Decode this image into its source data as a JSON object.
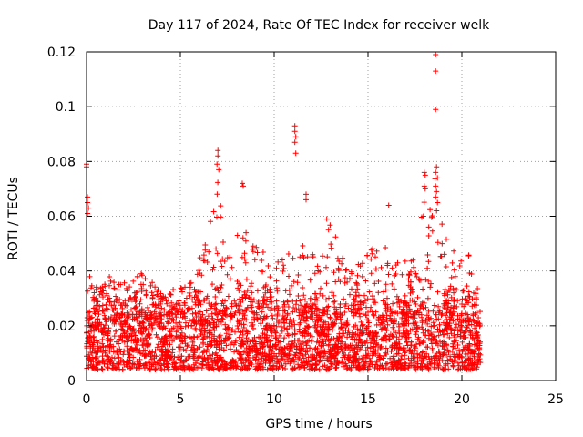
{
  "chart_data": {
    "type": "scatter",
    "title": "Day 117 of 2024, Rate Of TEC Index for receiver welk",
    "xlabel": "GPS time / hours",
    "ylabel": "ROTI / TECUs",
    "xlim": [
      0,
      25
    ],
    "ylim": [
      0,
      0.12
    ],
    "x_ticks": [
      0,
      5,
      10,
      15,
      20,
      25
    ],
    "x_tick_labels": [
      "0",
      "5",
      "10",
      "15",
      "20",
      "25"
    ],
    "y_ticks": [
      0,
      0.02,
      0.04,
      0.06,
      0.08,
      0.1,
      0.12
    ],
    "y_tick_labels": [
      "0",
      "0.02",
      "0.04",
      "0.06",
      "0.08",
      "0.1",
      "0.12"
    ],
    "grid": true,
    "marker": "plus",
    "color": "#ff0000",
    "data_range_hours": [
      0,
      21
    ],
    "baseline_band": [
      0.004,
      0.03
    ],
    "envelope": [
      [
        0.0,
        0.045
      ],
      [
        0.5,
        0.03
      ],
      [
        1.0,
        0.04
      ],
      [
        2.0,
        0.035
      ],
      [
        2.8,
        0.04
      ],
      [
        3.5,
        0.037
      ],
      [
        4.5,
        0.03
      ],
      [
        5.5,
        0.035
      ],
      [
        6.3,
        0.05
      ],
      [
        6.8,
        0.065
      ],
      [
        7.0,
        0.074
      ],
      [
        7.5,
        0.045
      ],
      [
        8.2,
        0.06
      ],
      [
        8.6,
        0.052
      ],
      [
        9.2,
        0.05
      ],
      [
        10.0,
        0.045
      ],
      [
        10.6,
        0.05
      ],
      [
        11.2,
        0.045
      ],
      [
        11.7,
        0.065
      ],
      [
        12.3,
        0.045
      ],
      [
        13.0,
        0.058
      ],
      [
        14.0,
        0.042
      ],
      [
        15.0,
        0.046
      ],
      [
        16.0,
        0.058
      ],
      [
        16.5,
        0.043
      ],
      [
        17.5,
        0.045
      ],
      [
        18.1,
        0.07
      ],
      [
        18.6,
        0.075
      ],
      [
        19.0,
        0.055
      ],
      [
        19.6,
        0.052
      ],
      [
        20.2,
        0.05
      ],
      [
        21.0,
        0.03
      ]
    ],
    "outliers": [
      {
        "x": 0.0,
        "y": 0.079
      },
      {
        "x": 0.0,
        "y": 0.078
      },
      {
        "x": 0.05,
        "y": 0.067
      },
      {
        "x": 0.05,
        "y": 0.065
      },
      {
        "x": 0.1,
        "y": 0.063
      },
      {
        "x": 0.05,
        "y": 0.061
      },
      {
        "x": 7.0,
        "y": 0.084
      },
      {
        "x": 7.0,
        "y": 0.082
      },
      {
        "x": 6.95,
        "y": 0.079
      },
      {
        "x": 7.05,
        "y": 0.077
      },
      {
        "x": 8.3,
        "y": 0.072
      },
      {
        "x": 8.35,
        "y": 0.071
      },
      {
        "x": 11.1,
        "y": 0.093
      },
      {
        "x": 11.1,
        "y": 0.091
      },
      {
        "x": 11.15,
        "y": 0.089
      },
      {
        "x": 11.1,
        "y": 0.087
      },
      {
        "x": 11.15,
        "y": 0.083
      },
      {
        "x": 11.7,
        "y": 0.068
      },
      {
        "x": 11.7,
        "y": 0.066
      },
      {
        "x": 12.8,
        "y": 0.059
      },
      {
        "x": 16.1,
        "y": 0.064
      },
      {
        "x": 18.0,
        "y": 0.076
      },
      {
        "x": 18.05,
        "y": 0.075
      },
      {
        "x": 18.0,
        "y": 0.071
      },
      {
        "x": 18.05,
        "y": 0.07
      },
      {
        "x": 17.95,
        "y": 0.06
      },
      {
        "x": 18.6,
        "y": 0.119
      },
      {
        "x": 18.6,
        "y": 0.113
      },
      {
        "x": 18.6,
        "y": 0.099
      },
      {
        "x": 18.65,
        "y": 0.078
      },
      {
        "x": 18.6,
        "y": 0.076
      },
      {
        "x": 18.7,
        "y": 0.074
      },
      {
        "x": 18.6,
        "y": 0.071
      },
      {
        "x": 18.65,
        "y": 0.069
      },
      {
        "x": 18.6,
        "y": 0.067
      },
      {
        "x": 18.7,
        "y": 0.065
      },
      {
        "x": 18.65,
        "y": 0.062
      }
    ]
  }
}
